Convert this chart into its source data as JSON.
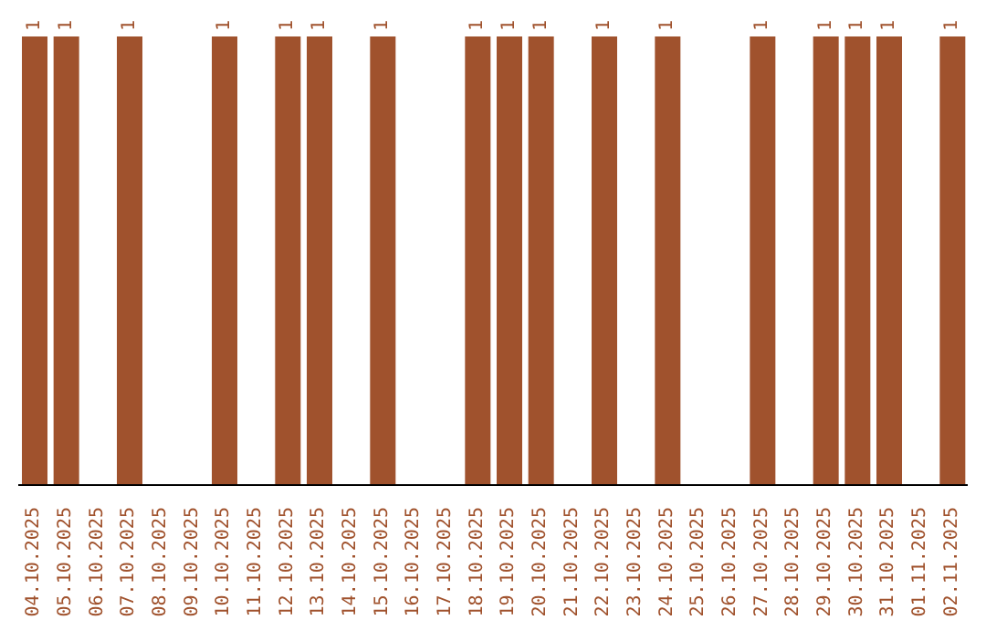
{
  "chart_data": {
    "type": "bar",
    "categories": [
      "04.10.2025",
      "05.10.2025",
      "06.10.2025",
      "07.10.2025",
      "08.10.2025",
      "09.10.2025",
      "10.10.2025",
      "11.10.2025",
      "12.10.2025",
      "13.10.2025",
      "14.10.2025",
      "15.10.2025",
      "16.10.2025",
      "17.10.2025",
      "18.10.2025",
      "19.10.2025",
      "20.10.2025",
      "21.10.2025",
      "22.10.2025",
      "23.10.2025",
      "24.10.2025",
      "25.10.2025",
      "26.10.2025",
      "27.10.2025",
      "28.10.2025",
      "29.10.2025",
      "30.10.2025",
      "31.10.2025",
      "01.11.2025",
      "02.11.2025"
    ],
    "values": [
      1,
      1,
      0,
      1,
      0,
      0,
      1,
      0,
      1,
      1,
      0,
      1,
      0,
      0,
      1,
      1,
      1,
      0,
      1,
      0,
      1,
      0,
      0,
      1,
      0,
      1,
      1,
      1,
      0,
      1
    ],
    "value_labels": [
      "1",
      "1",
      null,
      "1",
      null,
      null,
      "1",
      null,
      "1",
      "1",
      null,
      "1",
      null,
      null,
      "1",
      "1",
      "1",
      null,
      "1",
      null,
      "1",
      null,
      null,
      "1",
      null,
      "1",
      "1",
      "1",
      null,
      "1"
    ],
    "color": "#a0522d",
    "ylim": [
      0,
      1
    ],
    "grid": false,
    "legend": false
  }
}
